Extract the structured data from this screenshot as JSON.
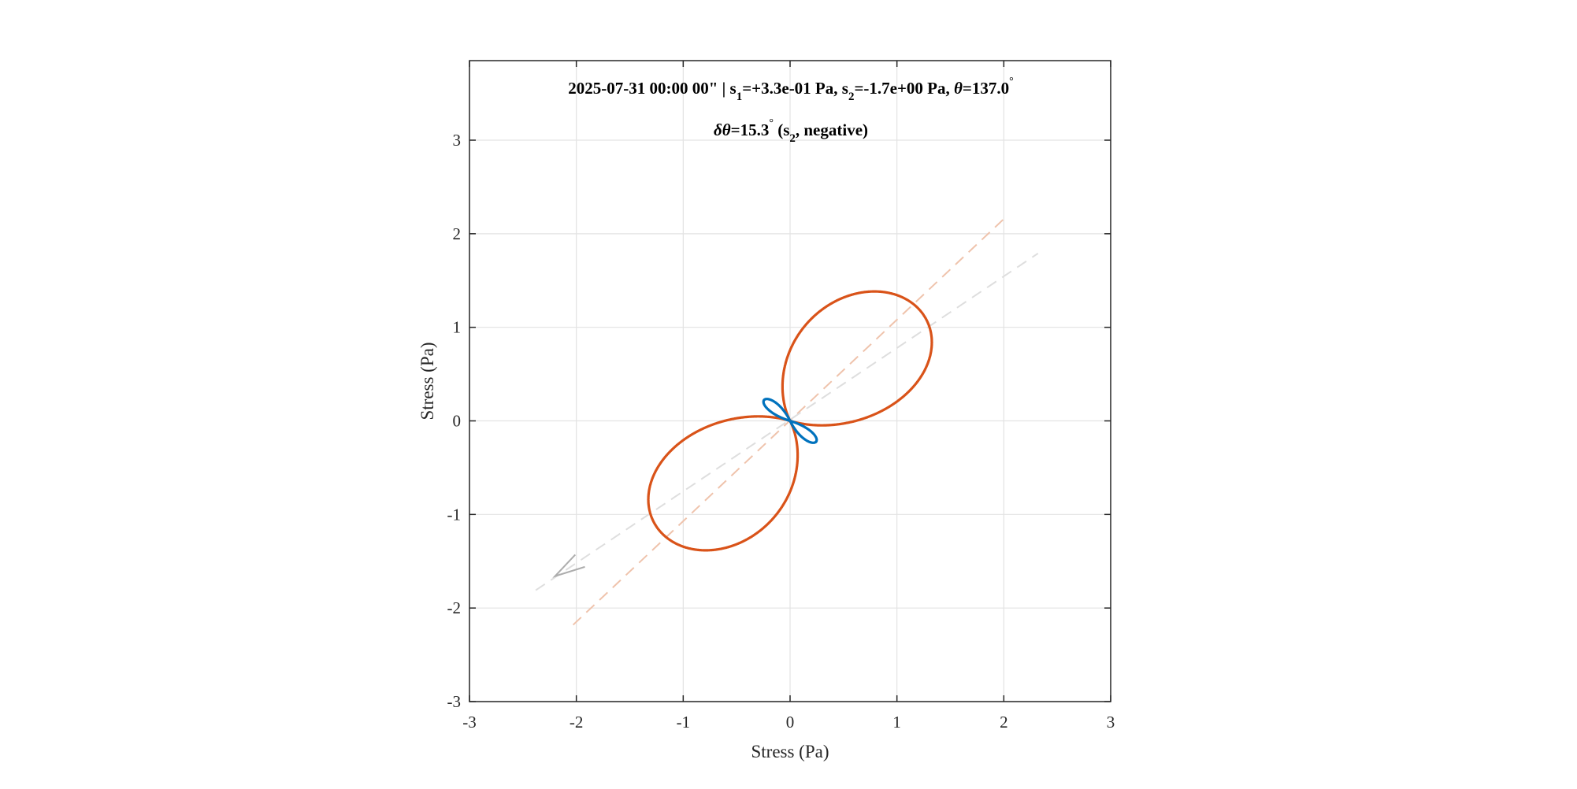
{
  "chart_data": {
    "type": "line",
    "title": {
      "line1": [
        "2025-07-31 00:00 00\"  |  s",
        "1",
        "=+3.3e-01 Pa, s",
        "2",
        "=-1.7e+00 Pa, ",
        "θ",
        "=137.0",
        "°"
      ],
      "line2": [
        "δθ",
        "=15.3",
        "°",
        " (s",
        "2",
        ", negative)"
      ]
    },
    "xlabel": "Stress (Pa)",
    "ylabel": "Stress (Pa)",
    "xlim": [
      -3,
      3
    ],
    "ylim": [
      -3,
      3.85
    ],
    "xticks": [
      "-3",
      "-2",
      "-1",
      "0",
      "1",
      "2",
      "3"
    ],
    "yticks": [
      "-3",
      "-2",
      "-1",
      "0",
      "1",
      "2",
      "3"
    ],
    "grid": true,
    "s1": 0.33,
    "s2": -1.7,
    "theta_deg": 137.0,
    "delta_theta_deg": 15.3,
    "series": [
      {
        "role": "negative normal stress |σn|",
        "color": "#D95319"
      },
      {
        "role": "positive normal stress σn",
        "color": "#0072BD"
      }
    ],
    "dashed_lines": [
      {
        "color": "#EFC3AC",
        "x": [
          -2.03,
          2.03
        ],
        "y": [
          -2.18,
          2.19
        ]
      },
      {
        "color": "#DEDEDE",
        "x": [
          -2.38,
          2.32
        ],
        "y": [
          -1.81,
          1.79
        ]
      }
    ],
    "arrow": {
      "color": "#ADADAD",
      "tip": [
        -2.2,
        -1.66
      ],
      "arms": [
        [
          -2.01,
          -1.43
        ],
        [
          -1.92,
          -1.56
        ]
      ]
    }
  }
}
